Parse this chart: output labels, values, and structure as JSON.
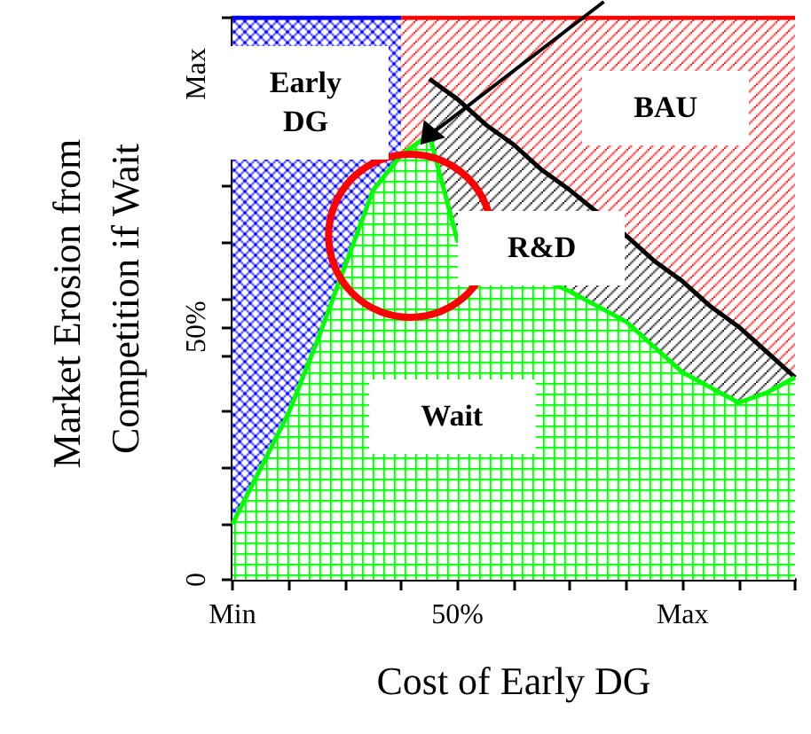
{
  "chart_data": {
    "type": "area",
    "xlabel": "Cost of Early DG",
    "ylabel": "Market Erosion from Competition if Wait",
    "categories": [
      "Min",
      null,
      null,
      null,
      null,
      null,
      null,
      null,
      "50%",
      null,
      null,
      null,
      null,
      null,
      null,
      null,
      "Max",
      null,
      null,
      null,
      null
    ],
    "ylim": [
      0,
      111.1
    ],
    "yticks": [
      0,
      {
        "value": 11.1,
        "label": null
      },
      {
        "value": 22.2,
        "label": null
      },
      {
        "value": 33.3,
        "label": null
      },
      {
        "value": 44.4,
        "label": null
      },
      {
        "value": 50,
        "label": "50%"
      },
      {
        "value": 55.6,
        "label": null
      },
      {
        "value": 66.7,
        "label": null
      },
      {
        "value": 77.8,
        "label": null
      },
      {
        "value": 88.9,
        "label": null
      },
      {
        "value": 100,
        "label": "Max"
      },
      {
        "value": 111.1,
        "label": null
      }
    ],
    "grid": false,
    "marker": "none",
    "line_style": "solid",
    "series": [
      {
        "name": "Early DG",
        "color": "#0000ff",
        "values": [
          111.1,
          111.1,
          111.1,
          111.1,
          111.1,
          111.1,
          111.1,
          null,
          null,
          null,
          null,
          null,
          null,
          null,
          null,
          null,
          null,
          null,
          null,
          null,
          null
        ]
      },
      {
        "name": "BAU",
        "color": "#ff0000",
        "values": [
          null,
          null,
          null,
          null,
          null,
          null,
          111.1,
          111.1,
          111.1,
          111.1,
          111.1,
          111.1,
          111.1,
          111.1,
          111.1,
          111.1,
          111.1,
          111.1,
          111.1,
          111.1,
          111.1
        ]
      },
      {
        "name": "R&D",
        "color": "#000000",
        "values": [
          null,
          null,
          null,
          null,
          null,
          null,
          null,
          99,
          95,
          90,
          86,
          81,
          77,
          null,
          68,
          63,
          59,
          54,
          50,
          45,
          40
        ]
      },
      {
        "name": "Wait",
        "color": "#00ff00",
        "values": [
          11,
          22,
          33,
          47,
          62,
          77,
          84,
          88,
          67,
          null,
          null,
          null,
          57,
          54,
          51,
          46,
          41,
          38,
          35,
          37,
          40
        ]
      }
    ]
  }
}
